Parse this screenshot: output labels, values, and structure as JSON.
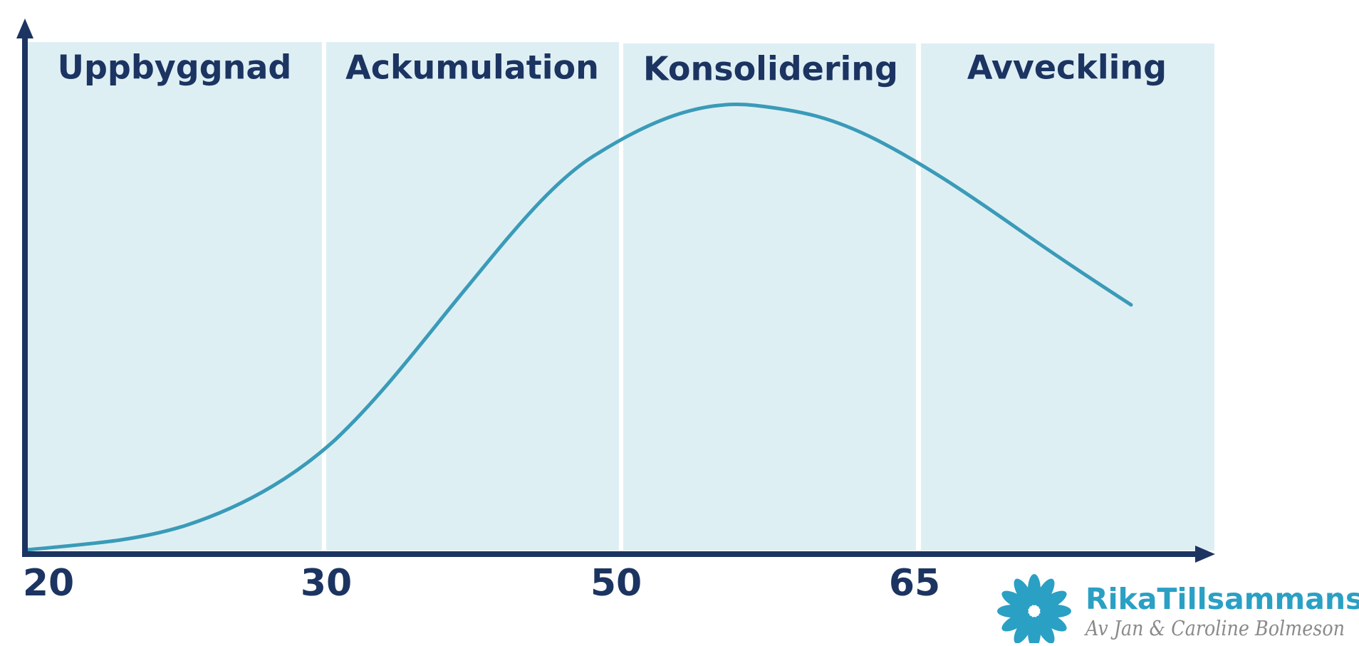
{
  "phases": [
    "Uppbyggnad",
    "Ackumulation",
    "Konsolidering",
    "Avveckling"
  ],
  "x_labels": [
    "20",
    "30",
    "50",
    "65"
  ],
  "logo": {
    "name": "RikaTillsammans",
    "tagline": "Av Jan & Caroline Bolmeson"
  }
}
